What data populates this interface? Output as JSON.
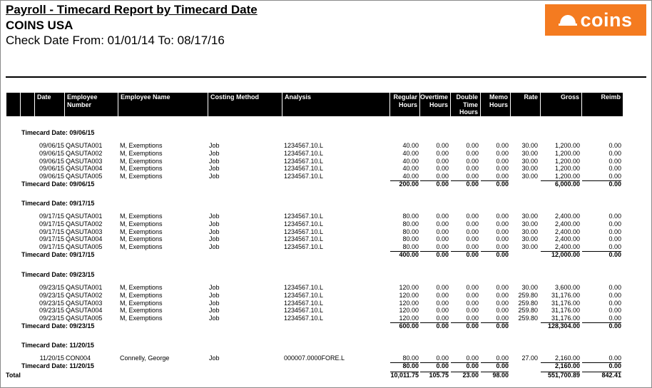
{
  "report": {
    "title": "Payroll - Timecard Report by Timecard Date",
    "company": "COINS USA",
    "date_range": "Check Date From: 01/01/14 To: 08/17/16",
    "logo_text": "coins",
    "logo_color": "#f47b20"
  },
  "columns": {
    "date": "Date",
    "employee_number": "Employee Number",
    "employee_name": "Employee Name",
    "costing_method": "Costing Method",
    "analysis": "Analysis",
    "regular_hours": "Regular Hours",
    "overtime_hours": "Overtime Hours",
    "double_time_hours": "Double Time Hours",
    "memo_hours": "Memo Hours",
    "rate": "Rate",
    "gross": "Gross",
    "reimb": "Reimb"
  },
  "groups": [
    {
      "header": "Timecard Date: 09/06/15",
      "rows": [
        {
          "date": "09/06/15",
          "emp_no": "QASUTA001",
          "name": "M, Exemptions",
          "method": "Job",
          "analysis": "1234567.10.L",
          "regular": "40.00",
          "overtime": "0.00",
          "double": "0.00",
          "memo": "0.00",
          "rate": "30.00",
          "gross": "1,200.00",
          "reimb": "0.00"
        },
        {
          "date": "09/06/15",
          "emp_no": "QASUTA002",
          "name": "M, Exemptions",
          "method": "Job",
          "analysis": "1234567.10.L",
          "regular": "40.00",
          "overtime": "0.00",
          "double": "0.00",
          "memo": "0.00",
          "rate": "30.00",
          "gross": "1,200.00",
          "reimb": "0.00"
        },
        {
          "date": "09/06/15",
          "emp_no": "QASUTA003",
          "name": "M, Exemptions",
          "method": "Job",
          "analysis": "1234567.10.L",
          "regular": "40.00",
          "overtime": "0.00",
          "double": "0.00",
          "memo": "0.00",
          "rate": "30.00",
          "gross": "1,200.00",
          "reimb": "0.00"
        },
        {
          "date": "09/06/15",
          "emp_no": "QASUTA004",
          "name": "M, Exemptions",
          "method": "Job",
          "analysis": "1234567.10.L",
          "regular": "40.00",
          "overtime": "0.00",
          "double": "0.00",
          "memo": "0.00",
          "rate": "30.00",
          "gross": "1,200.00",
          "reimb": "0.00"
        },
        {
          "date": "09/06/15",
          "emp_no": "QASUTA005",
          "name": "M, Exemptions",
          "method": "Job",
          "analysis": "1234567.10.L",
          "regular": "40.00",
          "overtime": "0.00",
          "double": "0.00",
          "memo": "0.00",
          "rate": "30.00",
          "gross": "1,200.00",
          "reimb": "0.00"
        }
      ],
      "subtotal": {
        "label": "Timecard Date: 09/06/15",
        "regular": "200.00",
        "overtime": "0.00",
        "double": "0.00",
        "memo": "0.00",
        "gross": "6,000.00",
        "reimb": "0.00"
      }
    },
    {
      "header": "Timecard Date: 09/17/15",
      "rows": [
        {
          "date": "09/17/15",
          "emp_no": "QASUTA001",
          "name": "M, Exemptions",
          "method": "Job",
          "analysis": "1234567.10.L",
          "regular": "80.00",
          "overtime": "0.00",
          "double": "0.00",
          "memo": "0.00",
          "rate": "30.00",
          "gross": "2,400.00",
          "reimb": "0.00"
        },
        {
          "date": "09/17/15",
          "emp_no": "QASUTA002",
          "name": "M, Exemptions",
          "method": "Job",
          "analysis": "1234567.10.L",
          "regular": "80.00",
          "overtime": "0.00",
          "double": "0.00",
          "memo": "0.00",
          "rate": "30.00",
          "gross": "2,400.00",
          "reimb": "0.00"
        },
        {
          "date": "09/17/15",
          "emp_no": "QASUTA003",
          "name": "M, Exemptions",
          "method": "Job",
          "analysis": "1234567.10.L",
          "regular": "80.00",
          "overtime": "0.00",
          "double": "0.00",
          "memo": "0.00",
          "rate": "30.00",
          "gross": "2,400.00",
          "reimb": "0.00"
        },
        {
          "date": "09/17/15",
          "emp_no": "QASUTA004",
          "name": "M, Exemptions",
          "method": "Job",
          "analysis": "1234567.10.L",
          "regular": "80.00",
          "overtime": "0.00",
          "double": "0.00",
          "memo": "0.00",
          "rate": "30.00",
          "gross": "2,400.00",
          "reimb": "0.00"
        },
        {
          "date": "09/17/15",
          "emp_no": "QASUTA005",
          "name": "M, Exemptions",
          "method": "Job",
          "analysis": "1234567.10.L",
          "regular": "80.00",
          "overtime": "0.00",
          "double": "0.00",
          "memo": "0.00",
          "rate": "30.00",
          "gross": "2,400.00",
          "reimb": "0.00"
        }
      ],
      "subtotal": {
        "label": "Timecard Date: 09/17/15",
        "regular": "400.00",
        "overtime": "0.00",
        "double": "0.00",
        "memo": "0.00",
        "gross": "12,000.00",
        "reimb": "0.00"
      }
    },
    {
      "header": "Timecard Date: 09/23/15",
      "rows": [
        {
          "date": "09/23/15",
          "emp_no": "QASUTA001",
          "name": "M, Exemptions",
          "method": "Job",
          "analysis": "1234567.10.L",
          "regular": "120.00",
          "overtime": "0.00",
          "double": "0.00",
          "memo": "0.00",
          "rate": "30.00",
          "gross": "3,600.00",
          "reimb": "0.00"
        },
        {
          "date": "09/23/15",
          "emp_no": "QASUTA002",
          "name": "M, Exemptions",
          "method": "Job",
          "analysis": "1234567.10.L",
          "regular": "120.00",
          "overtime": "0.00",
          "double": "0.00",
          "memo": "0.00",
          "rate": "259.80",
          "gross": "31,176.00",
          "reimb": "0.00"
        },
        {
          "date": "09/23/15",
          "emp_no": "QASUTA003",
          "name": "M, Exemptions",
          "method": "Job",
          "analysis": "1234567.10.L",
          "regular": "120.00",
          "overtime": "0.00",
          "double": "0.00",
          "memo": "0.00",
          "rate": "259.80",
          "gross": "31,176.00",
          "reimb": "0.00"
        },
        {
          "date": "09/23/15",
          "emp_no": "QASUTA004",
          "name": "M, Exemptions",
          "method": "Job",
          "analysis": "1234567.10.L",
          "regular": "120.00",
          "overtime": "0.00",
          "double": "0.00",
          "memo": "0.00",
          "rate": "259.80",
          "gross": "31,176.00",
          "reimb": "0.00"
        },
        {
          "date": "09/23/15",
          "emp_no": "QASUTA005",
          "name": "M, Exemptions",
          "method": "Job",
          "analysis": "1234567.10.L",
          "regular": "120.00",
          "overtime": "0.00",
          "double": "0.00",
          "memo": "0.00",
          "rate": "259.80",
          "gross": "31,176.00",
          "reimb": "0.00"
        }
      ],
      "subtotal": {
        "label": "Timecard Date: 09/23/15",
        "regular": "600.00",
        "overtime": "0.00",
        "double": "0.00",
        "memo": "0.00",
        "gross": "128,304.00",
        "reimb": "0.00"
      }
    },
    {
      "header": "Timecard Date: 11/20/15",
      "rows": [
        {
          "date": "11/20/15",
          "emp_no": "CON004",
          "name": "Connelly, George",
          "method": "Job",
          "analysis": "000007.0000FORE.L",
          "regular": "80.00",
          "overtime": "0.00",
          "double": "0.00",
          "memo": "0.00",
          "rate": "27.00",
          "gross": "2,160.00",
          "reimb": "0.00"
        }
      ],
      "subtotal": {
        "label": "Timecard Date: 11/20/15",
        "regular": "80.00",
        "overtime": "0.00",
        "double": "0.00",
        "memo": "0.00",
        "gross": "2,160.00",
        "reimb": "0.00"
      }
    }
  ],
  "total": {
    "label": "Total",
    "regular": "10,011.75",
    "overtime": "105.75",
    "double": "23.00",
    "memo": "98.00",
    "gross": "551,700.89",
    "reimb": "842.41"
  }
}
